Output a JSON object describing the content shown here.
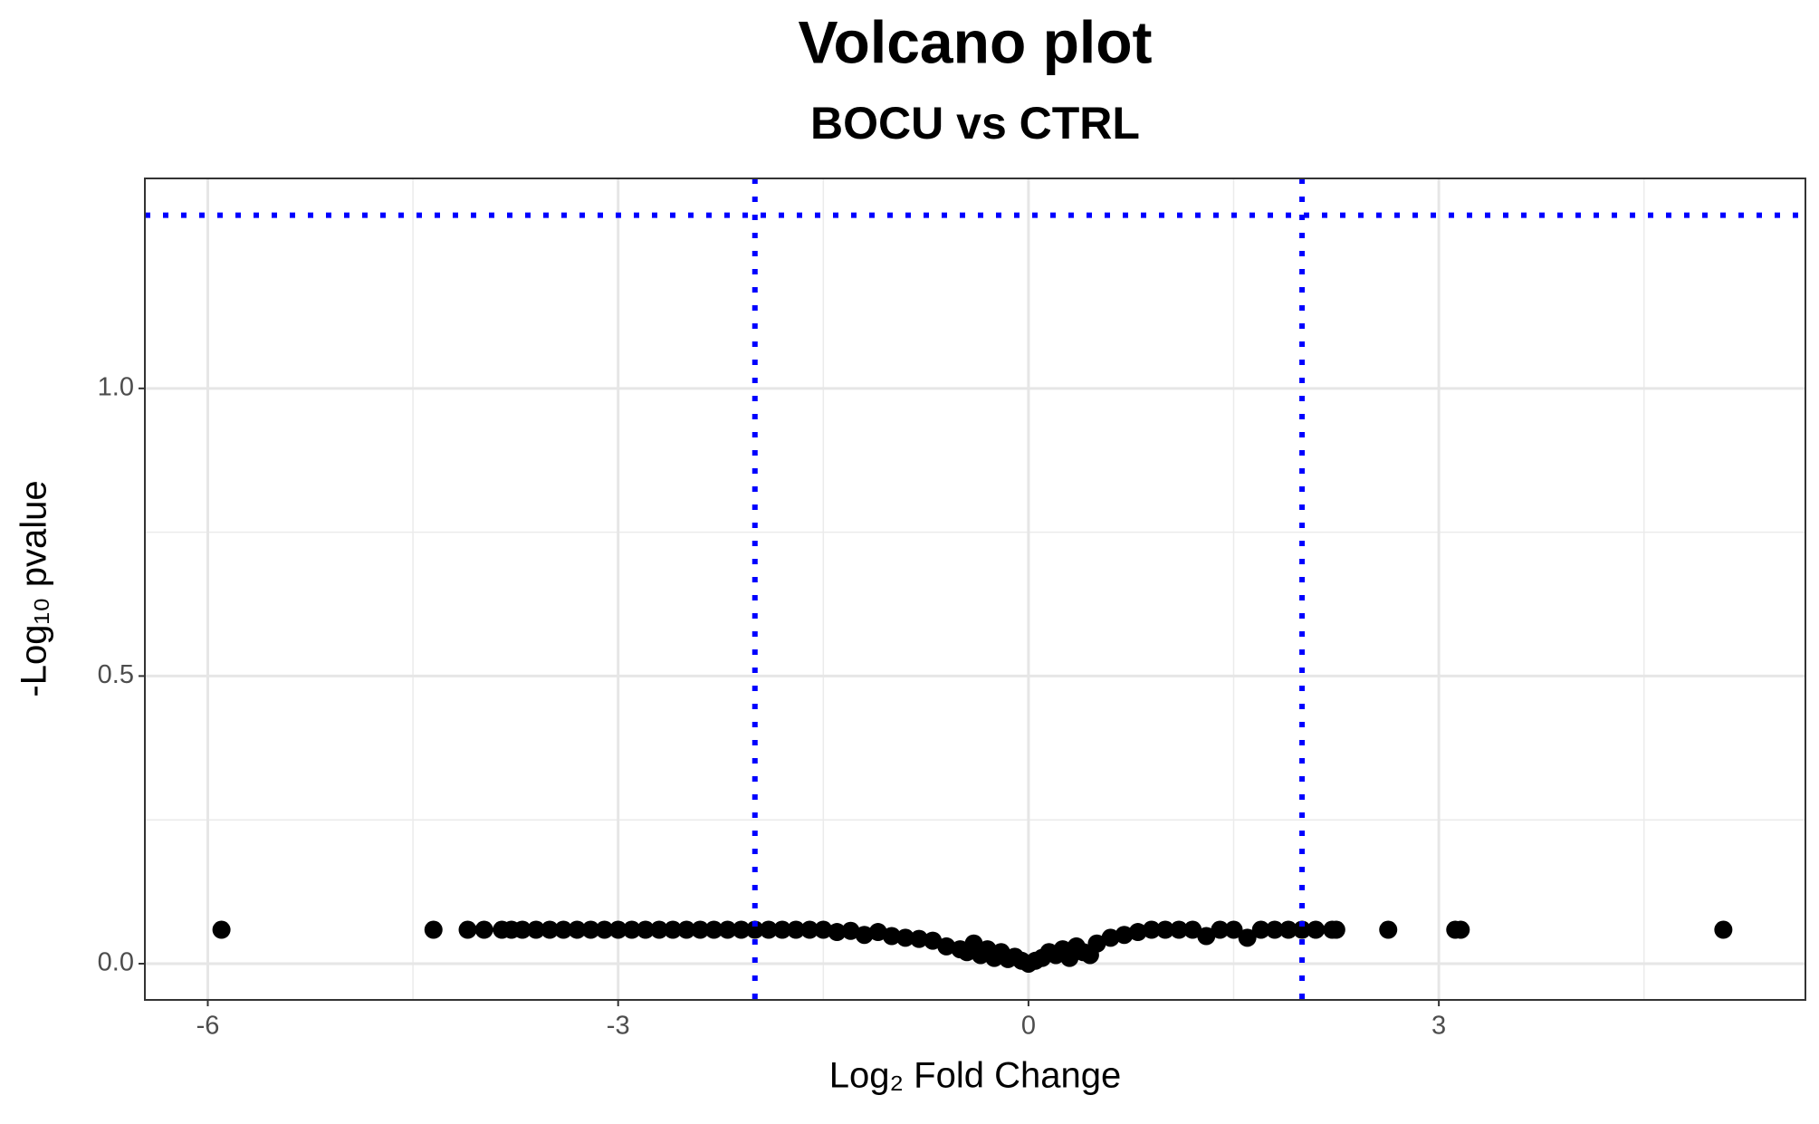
{
  "chart_data": {
    "type": "scatter",
    "title": "Volcano plot",
    "subtitle": "BOCU vs CTRL",
    "x_label": "Log₂ Fold Change",
    "y_label": "-Log₁₀ pvalue",
    "xlim": [
      -6.46,
      5.68
    ],
    "ylim": [
      -0.063,
      1.365
    ],
    "xticks": [
      -6,
      -3,
      0,
      3
    ],
    "yticks": [
      {
        "value": 0,
        "label": "0.0"
      },
      0.5,
      {
        "value": 1,
        "label": "1.0"
      }
    ],
    "minor_xticks": [
      -4.5,
      -1.5,
      1.5,
      4.5
    ],
    "minor_yticks": [
      0.25,
      0.75
    ],
    "grid": true,
    "color": "#000000",
    "threshold_color": "#0000ff",
    "vlines": [
      -2,
      2
    ],
    "hlines": [
      1.301
    ],
    "x": [
      -5.9,
      -4.35,
      -4.1,
      -3.98,
      -3.85,
      -3.78,
      -3.7,
      -3.6,
      -3.5,
      -3.4,
      -3.3,
      -3.2,
      -3.1,
      -3.0,
      -2.9,
      -2.8,
      -2.7,
      -2.6,
      -2.5,
      -2.4,
      -2.3,
      -2.2,
      -2.1,
      -2.0,
      -1.9,
      -1.8,
      -1.7,
      -1.6,
      -1.5,
      -1.4,
      -1.3,
      -1.2,
      -1.1,
      -1.0,
      -0.9,
      -0.8,
      -0.7,
      -0.6,
      -0.5,
      -0.45,
      -0.4,
      -0.35,
      -0.3,
      -0.25,
      -0.2,
      -0.15,
      -0.1,
      -0.05,
      0,
      0.05,
      0.1,
      0.15,
      0.2,
      0.25,
      0.3,
      0.35,
      0.4,
      0.45,
      0.5,
      0.6,
      0.7,
      0.8,
      0.9,
      1.0,
      1.1,
      1.2,
      1.3,
      1.4,
      1.5,
      1.6,
      1.7,
      1.8,
      1.9,
      2.0,
      2.1,
      2.22,
      2.25,
      2.63,
      3.12,
      3.16,
      5.08
    ],
    "values": [
      0.059,
      0.059,
      0.059,
      0.059,
      0.059,
      0.059,
      0.059,
      0.059,
      0.059,
      0.059,
      0.059,
      0.059,
      0.059,
      0.059,
      0.059,
      0.059,
      0.059,
      0.059,
      0.059,
      0.059,
      0.059,
      0.059,
      0.059,
      0.059,
      0.059,
      0.059,
      0.059,
      0.059,
      0.059,
      0.055,
      0.057,
      0.05,
      0.055,
      0.048,
      0.045,
      0.043,
      0.04,
      0.03,
      0.025,
      0.02,
      0.035,
      0.015,
      0.025,
      0.01,
      0.02,
      0.008,
      0.012,
      0.005,
      0.0,
      0.005,
      0.01,
      0.02,
      0.015,
      0.025,
      0.01,
      0.03,
      0.02,
      0.015,
      0.035,
      0.045,
      0.05,
      0.055,
      0.059,
      0.059,
      0.059,
      0.059,
      0.048,
      0.059,
      0.059,
      0.045,
      0.059,
      0.059,
      0.059,
      0.059,
      0.059,
      0.059,
      0.059,
      0.059,
      0.059,
      0.059,
      0.059
    ]
  }
}
